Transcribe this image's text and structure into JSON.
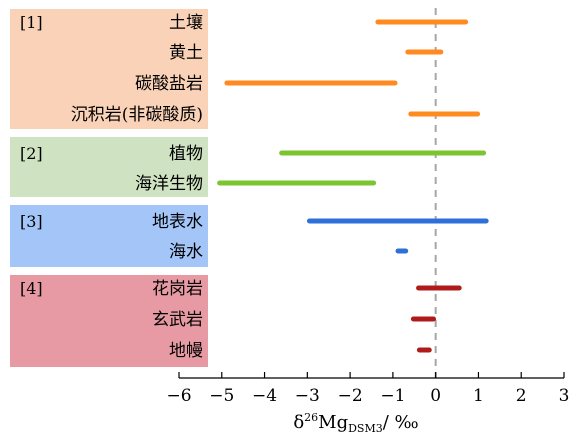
{
  "chart_data": {
    "type": "range-bar",
    "xlabel": {
      "prefix": "δ",
      "sup": "26",
      "main": "Mg",
      "sub": "DSM3",
      "suffix": "/ ‰"
    },
    "xlim": [
      -6,
      3
    ],
    "xticks": [
      -6,
      -5,
      -4,
      -3,
      -2,
      -1,
      0,
      1,
      2,
      3
    ],
    "xtick_labels": [
      "−6",
      "−5",
      "−4",
      "−3",
      "−2",
      "−1",
      "0",
      "1",
      "2",
      "3"
    ],
    "reference_line": {
      "x": 0,
      "style": "dashed",
      "color": "#a6a6a6"
    },
    "groups": [
      {
        "label": "[1]",
        "color": "#f9d2b7",
        "items": [
          {
            "label": "土壤",
            "range": [
              -1.35,
              0.7
            ],
            "color": "#ff8a1f"
          },
          {
            "label": "黄土",
            "range": [
              -0.65,
              0.12
            ],
            "color": "#ff8a1f"
          },
          {
            "label": "碳酸盐岩",
            "range": [
              -4.88,
              -0.95
            ],
            "color": "#ff8a1f"
          },
          {
            "label": "沉积岩(非碳酸质)",
            "range": [
              -0.58,
              0.98
            ],
            "color": "#ff8a1f"
          }
        ]
      },
      {
        "label": "[2]",
        "color": "#cfe2c2",
        "items": [
          {
            "label": "植物",
            "range": [
              -3.6,
              1.12
            ],
            "color": "#7cc532"
          },
          {
            "label": "海洋生物",
            "range": [
              -5.05,
              -1.45
            ],
            "color": "#7cc532"
          }
        ]
      },
      {
        "label": "[3]",
        "color": "#a3c5f7",
        "items": [
          {
            "label": "地表水",
            "range": [
              -2.95,
              1.18
            ],
            "color": "#2f6fd8"
          },
          {
            "label": "海水",
            "range": [
              -0.88,
              -0.7
            ],
            "color": "#2f6fd8"
          }
        ]
      },
      {
        "label": "[4]",
        "color": "#e79aa3",
        "items": [
          {
            "label": "花岗岩",
            "range": [
              -0.4,
              0.55
            ],
            "color": "#b01a1a"
          },
          {
            "label": "玄武岩",
            "range": [
              -0.52,
              -0.05
            ],
            "color": "#b01a1a"
          },
          {
            "label": "地幔",
            "range": [
              -0.38,
              -0.15
            ],
            "color": "#b01a1a"
          }
        ]
      }
    ]
  }
}
